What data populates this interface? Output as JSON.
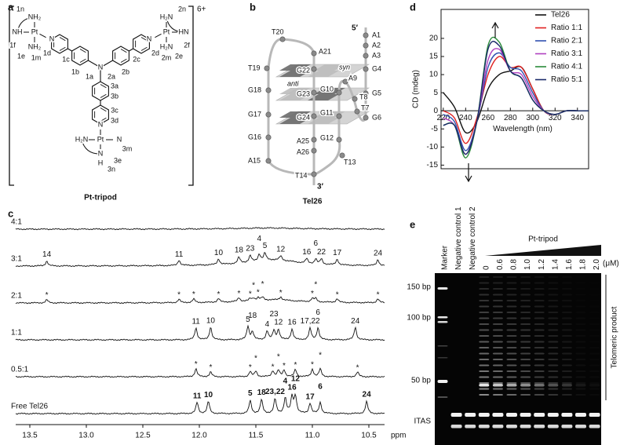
{
  "panel_labels": [
    "a",
    "b",
    "c",
    "d",
    "e"
  ],
  "structure": {
    "charge": "6+",
    "caption": "Pt-tripod",
    "labels": [
      "1n",
      "1f",
      "1e",
      "1m",
      "1d",
      "1c",
      "1b",
      "1a",
      "2a",
      "2b",
      "2c",
      "2d",
      "2m",
      "2e",
      "2f",
      "2n",
      "3a",
      "3b",
      "3c",
      "3d",
      "3m",
      "3e",
      "3n"
    ],
    "atoms": [
      "NH₂",
      "NH",
      "Pt",
      "NH₂",
      "N",
      "H₂N",
      "Pt",
      "HN",
      "H₂N",
      "N",
      "H₂N",
      "Pt",
      "N",
      "N",
      "N",
      "H",
      "N"
    ]
  },
  "quadruplex": {
    "caption": "Tel26",
    "five_prime": "5′",
    "three_prime": "3′",
    "anti": "anti",
    "syn": "syn",
    "residues": [
      "A1",
      "A2",
      "A3",
      "G4",
      "G5",
      "G6",
      "T7",
      "T8",
      "A9",
      "G10",
      "G11",
      "G12",
      "T13",
      "T14",
      "A15",
      "G16",
      "G17",
      "G18",
      "T19",
      "T20",
      "A21",
      "G22",
      "G23",
      "G24",
      "A25",
      "A26"
    ]
  },
  "nmr": {
    "xlabel": "ppm",
    "xticks": [
      13.5,
      {
        "value": 13,
        "label": "13.0"
      },
      12.5,
      {
        "value": 12,
        "label": "12.0"
      },
      11.5,
      {
        "value": 11,
        "label": "11.0"
      },
      10.5
    ],
    "rows": [
      {
        "label": "4:1"
      },
      {
        "label": "3:1",
        "color": "#2e3f8f",
        "peaks": [
          "14",
          "11",
          "10",
          "18",
          "23",
          "4",
          "5",
          "12",
          "16",
          "6",
          "22",
          "17",
          "24"
        ]
      },
      {
        "label": "2:1",
        "color": "#111111",
        "peaks": [
          "*",
          "*",
          "*",
          "*",
          "*",
          "*",
          "*",
          "*",
          "*",
          "*",
          "*",
          "*",
          "*",
          "*"
        ]
      },
      {
        "label": "1:1",
        "color": "#8b2323",
        "peaks": [
          "11",
          "10",
          "5",
          "18",
          "4",
          "23",
          "12",
          "16",
          "17,22",
          "6",
          "24"
        ]
      },
      {
        "label": "0.5:1",
        "color": "#111111",
        "peaks": [
          "*",
          "*",
          "*",
          "*",
          "*",
          "*",
          "*",
          "*",
          "*",
          "*",
          "*"
        ]
      },
      {
        "label": "Free Tel26",
        "color": "#111111",
        "peaks": [
          "11",
          "10",
          "5",
          "18",
          "23,22",
          "4",
          "16",
          "12",
          "17",
          "6",
          "24"
        ]
      }
    ]
  },
  "chart_data": {
    "type": "line",
    "xlabel": "Wavelength (nm)",
    "ylabel": "CD (mdeg)",
    "x": [
      220,
      230,
      240,
      250,
      260,
      270,
      280,
      290,
      300,
      310,
      320,
      330,
      340,
      350
    ],
    "xlim": [
      218,
      350
    ],
    "ylim": [
      -16,
      28
    ],
    "xticks": [
      220,
      240,
      260,
      280,
      300,
      320,
      340
    ],
    "yticks": [
      -15,
      -10,
      -5,
      0,
      5,
      10,
      15,
      20
    ],
    "legend": "upper right",
    "series": [
      {
        "name": "Tel26",
        "color": "#111111",
        "values": [
          5,
          1,
          -6,
          -3,
          6,
          10,
          11,
          12,
          6,
          0,
          -1,
          0,
          0,
          0
        ]
      },
      {
        "name": "Ratio 1:1",
        "color": "#e02020",
        "values": [
          0,
          -2,
          -9,
          -2,
          10,
          15,
          12,
          12,
          6,
          0,
          -1,
          0,
          0,
          0
        ]
      },
      {
        "name": "Ratio 2:1",
        "color": "#3050b0",
        "values": [
          -1,
          -3,
          -11,
          -3,
          12,
          16,
          12,
          11,
          5,
          0,
          -1,
          0,
          0,
          0
        ]
      },
      {
        "name": "Ratio 3:1",
        "color": "#b040c0",
        "values": [
          -2,
          -4,
          -12,
          -3,
          14,
          17,
          11,
          10,
          4,
          0,
          -1,
          0,
          0,
          0
        ]
      },
      {
        "name": "Ratio 4:1",
        "color": "#2a8a3a",
        "values": [
          -4,
          -4,
          -13,
          -3,
          18,
          19,
          11,
          9,
          3,
          0,
          -1,
          0,
          0,
          0
        ]
      },
      {
        "name": "Ratio 5:1",
        "color": "#1a2a6a",
        "values": [
          -4,
          -4,
          -12,
          -3,
          17,
          18,
          11,
          9,
          3,
          0,
          -1,
          0,
          0,
          0
        ]
      }
    ]
  },
  "gel": {
    "lanes": [
      "Marker",
      "Negative control 1",
      "Negative control 2"
    ],
    "drug": "Pt-tripod",
    "concentrations": [
      0,
      0.6,
      0.8,
      {
        "value": 1,
        "label": "1.0"
      },
      1.2,
      1.4,
      1.6,
      1.8,
      {
        "value": 2,
        "label": "2.0"
      }
    ],
    "unit": "(μM)",
    "markers": [
      "150 bp",
      "100 bp",
      "50 bp"
    ],
    "itas": "ITAS",
    "product": "Telomeric product"
  }
}
